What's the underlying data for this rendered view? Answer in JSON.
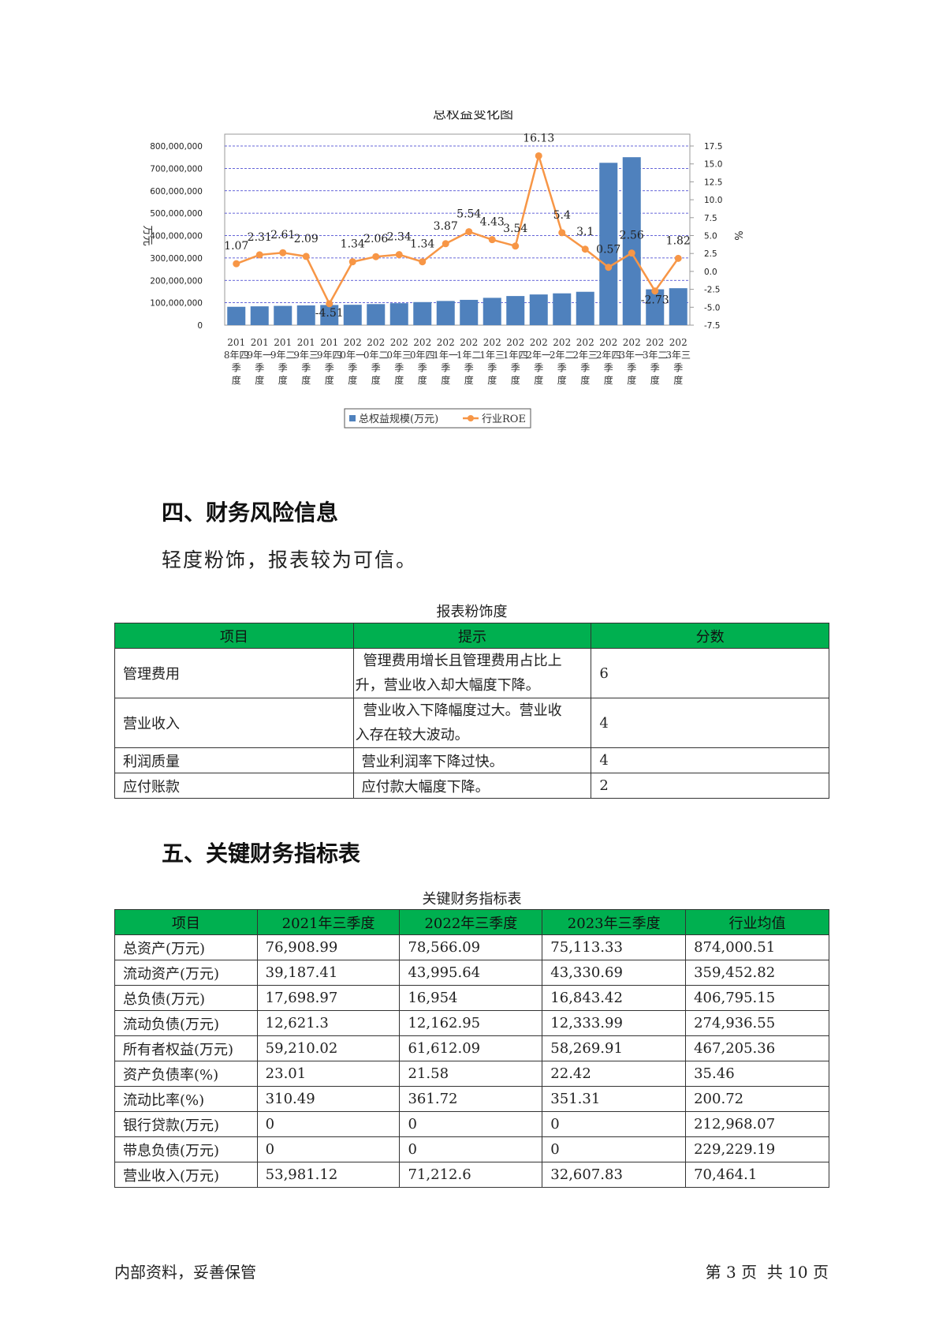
{
  "chart_data": {
    "type": "bar",
    "title": "总权益变化图",
    "ylabel_left": "万元",
    "ylabel_right": "%",
    "left_ticks": [
      "800,000,000",
      "700,000,000",
      "600,000,000",
      "500,000,000",
      "400,000,000",
      "300,000,000",
      "200,000,000",
      "100,000,000",
      "0"
    ],
    "right_ticks": [
      "17.5",
      "15.0",
      "12.5",
      "10.0",
      "7.5",
      "5.0",
      "2.5",
      "0.0",
      "-2.5",
      "-5.0",
      "-7.5"
    ],
    "ylim_left": [
      0,
      800000000
    ],
    "ylim_right": [
      -7.5,
      17.5
    ],
    "categories": [
      "2018年四季度",
      "2019年一季度",
      "2019年二季度",
      "2019年三季度",
      "2019年四季度",
      "2020年一季度",
      "2020年二季度",
      "2020年三季度",
      "2020年四季度",
      "2021年一季度",
      "2021年二季度",
      "2021年三季度",
      "2021年四季度",
      "2022年一季度",
      "2022年二季度",
      "2022年三季度",
      "2022年四季度",
      "2023年一季度",
      "2023年二季度",
      "2023年三季度"
    ],
    "series": [
      {
        "name": "总权益规模(万元)",
        "type": "bar",
        "color": "#4f81bd",
        "values": [
          82000000,
          84000000,
          86000000,
          88000000,
          90000000,
          91000000,
          94000000,
          98000000,
          103000000,
          108000000,
          113000000,
          122000000,
          130000000,
          137000000,
          142000000,
          149000000,
          725000000,
          750000000,
          160000000,
          165000000
        ]
      },
      {
        "name": "行业ROE",
        "type": "line",
        "color": "#f79646",
        "values": [
          1.07,
          2.31,
          2.61,
          2.09,
          -4.51,
          1.34,
          2.06,
          2.34,
          1.34,
          3.87,
          5.54,
          4.43,
          3.54,
          16.13,
          5.4,
          3.1,
          0.57,
          2.56,
          -2.73,
          1.82
        ],
        "labels": [
          "1.07",
          "2.31",
          "2.61",
          "2.09",
          "-4.51",
          "1.34",
          "2.06",
          "2.34",
          "1.34",
          "3.87",
          "5.54",
          "4.43",
          "3.54",
          "16.13",
          "5.4",
          "3.1",
          "0.57",
          "2.56",
          "-2.73",
          "1.82"
        ]
      }
    ],
    "grid": true,
    "legend_position": "bottom"
  },
  "section4": {
    "title": "四、财务风险信息",
    "summary": "轻度粉饰，报表较为可信。",
    "table": {
      "caption": "报表粉饰度",
      "headers": [
        "项目",
        "提示",
        "分数"
      ],
      "rows": [
        {
          "item": "管理费用",
          "hint_line1": "管理费用增长且管理费用占比上",
          "hint_line2": "升，营业收入却大幅度下降。",
          "score": "6"
        },
        {
          "item": "营业收入",
          "hint_line1": "营业收入下降幅度过大。营业收",
          "hint_line2": "入存在较大波动。",
          "score": "4"
        },
        {
          "item": "利润质量",
          "hint_line1": "营业利润率下降过快。",
          "hint_line2": "",
          "score": "4"
        },
        {
          "item": "应付账款",
          "hint_line1": "应付款大幅度下降。",
          "hint_line2": "",
          "score": "2"
        }
      ]
    }
  },
  "section5": {
    "title": "五、关键财务指标表",
    "table": {
      "caption": "关键财务指标表",
      "headers": [
        "项目",
        "2021年三季度",
        "2022年三季度",
        "2023年三季度",
        "行业均值"
      ],
      "rows": [
        [
          "总资产(万元)",
          "76,908.99",
          "78,566.09",
          "75,113.33",
          "874,000.51"
        ],
        [
          "流动资产(万元)",
          "39,187.41",
          "43,995.64",
          "43,330.69",
          "359,452.82"
        ],
        [
          "总负债(万元)",
          "17,698.97",
          "16,954",
          "16,843.42",
          "406,795.15"
        ],
        [
          "流动负债(万元)",
          "12,621.3",
          "12,162.95",
          "12,333.99",
          "274,936.55"
        ],
        [
          "所有者权益(万元)",
          "59,210.02",
          "61,612.09",
          "58,269.91",
          "467,205.36"
        ],
        [
          "资产负债率(%)",
          "23.01",
          "21.58",
          "22.42",
          "35.46"
        ],
        [
          "流动比率(%)",
          "310.49",
          "361.72",
          "351.31",
          "200.72"
        ],
        [
          "银行贷款(万元)",
          "0",
          "0",
          "0",
          "212,968.07"
        ],
        [
          "带息负债(万元)",
          "0",
          "0",
          "0",
          "229,229.19"
        ],
        [
          "营业收入(万元)",
          "53,981.12",
          "71,212.6",
          "32,607.83",
          "70,464.1"
        ]
      ]
    }
  },
  "footer": {
    "left": "内部资料，妥善保管",
    "right": "第 3 页  共 10 页"
  }
}
